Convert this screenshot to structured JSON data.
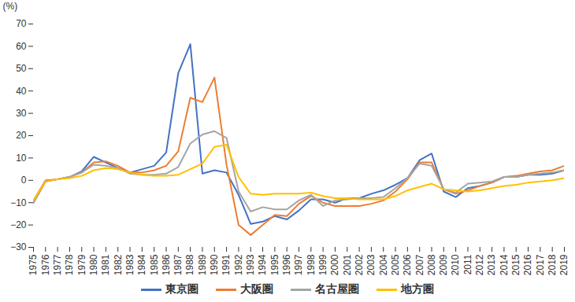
{
  "chart_data": {
    "type": "line",
    "ylabel": "(%)",
    "x": [
      1975,
      1976,
      1977,
      1978,
      1979,
      1980,
      1981,
      1982,
      1983,
      1984,
      1985,
      1986,
      1987,
      1988,
      1989,
      1990,
      1991,
      1992,
      1993,
      1994,
      1995,
      1996,
      1997,
      1998,
      1999,
      2000,
      2001,
      2002,
      2003,
      2004,
      2005,
      2006,
      2007,
      2008,
      2009,
      2010,
      2011,
      2012,
      2013,
      2014,
      2015,
      2016,
      2017,
      2018,
      2019
    ],
    "xlim": [
      1975,
      2019
    ],
    "xticks": [
      1975,
      1976,
      1977,
      1978,
      1979,
      1980,
      1981,
      1982,
      1983,
      1984,
      1985,
      1986,
      1987,
      1988,
      1989,
      1990,
      1991,
      1992,
      1993,
      1994,
      1995,
      1996,
      1997,
      1998,
      1999,
      2000,
      2001,
      2002,
      2003,
      2004,
      2005,
      2006,
      2007,
      2008,
      2009,
      2010,
      2011,
      2012,
      2013,
      2014,
      2015,
      2016,
      2017,
      2018,
      2019
    ],
    "ylim": [
      -30,
      70
    ],
    "yticks": [
      -30,
      -20,
      -10,
      0,
      10,
      20,
      30,
      40,
      50,
      60,
      70
    ],
    "grid": false,
    "legend": "bottom",
    "series": [
      {
        "name": "東京圏",
        "color": "#4472c4",
        "values": [
          -10,
          -0.5,
          0.5,
          1.5,
          4,
          10.5,
          8,
          5.5,
          3.5,
          5,
          6.5,
          12.5,
          48,
          61,
          3,
          4.5,
          3.5,
          -6.5,
          -19.5,
          -18.5,
          -16,
          -17.5,
          -13.5,
          -8.5,
          -8.5,
          -10,
          -8,
          -8,
          -6,
          -4.5,
          -2,
          1,
          9,
          12,
          -5,
          -7.5,
          -3.5,
          -2.5,
          -1,
          1.5,
          1.5,
          2.5,
          2.5,
          3,
          4.5
        ]
      },
      {
        "name": "大阪圏",
        "color": "#ed7d31",
        "values": [
          -9,
          0,
          0.5,
          1.5,
          3.5,
          8,
          8.5,
          6.5,
          3.5,
          3.5,
          4.5,
          6.5,
          13,
          37,
          35,
          46,
          7,
          -20,
          -24.5,
          -20,
          -15.5,
          -16,
          -10.5,
          -7,
          -10,
          -11.5,
          -11.5,
          -11.5,
          -10.5,
          -9,
          -5,
          0.5,
          8,
          8,
          -4,
          -6,
          -4.5,
          -2.5,
          -1,
          1.5,
          2,
          3,
          4,
          4.5,
          6.5
        ]
      },
      {
        "name": "名古屋圏",
        "color": "#a5a5a5",
        "values": [
          -10,
          -0.5,
          0.5,
          1.5,
          3.5,
          7,
          6.5,
          5.5,
          3,
          2.5,
          2.5,
          3,
          6,
          16.5,
          20.5,
          22,
          19,
          -5,
          -14,
          -12,
          -13,
          -13,
          -9,
          -6.5,
          -11.5,
          -9,
          -8.5,
          -8,
          -8,
          -7.5,
          -3.5,
          1,
          7.5,
          6.5,
          -4,
          -5.5,
          -1.5,
          -1,
          -0.5,
          1.5,
          1.5,
          2.5,
          3,
          3.5,
          4.5
        ]
      },
      {
        "name": "地方圏",
        "color": "#ffc000",
        "values": [
          -9,
          -0.5,
          0.5,
          1,
          2,
          4.5,
          5.5,
          5,
          3.5,
          2.5,
          2,
          2,
          2.5,
          5,
          7.5,
          15,
          16,
          1.5,
          -6,
          -6.5,
          -6,
          -6,
          -6,
          -5.5,
          -7,
          -8,
          -8,
          -8.5,
          -8.5,
          -8.5,
          -7,
          -4.5,
          -3,
          -1.5,
          -4,
          -4.5,
          -5,
          -4.5,
          -3.5,
          -2.5,
          -2,
          -1,
          -0.5,
          0,
          1
        ]
      }
    ]
  }
}
